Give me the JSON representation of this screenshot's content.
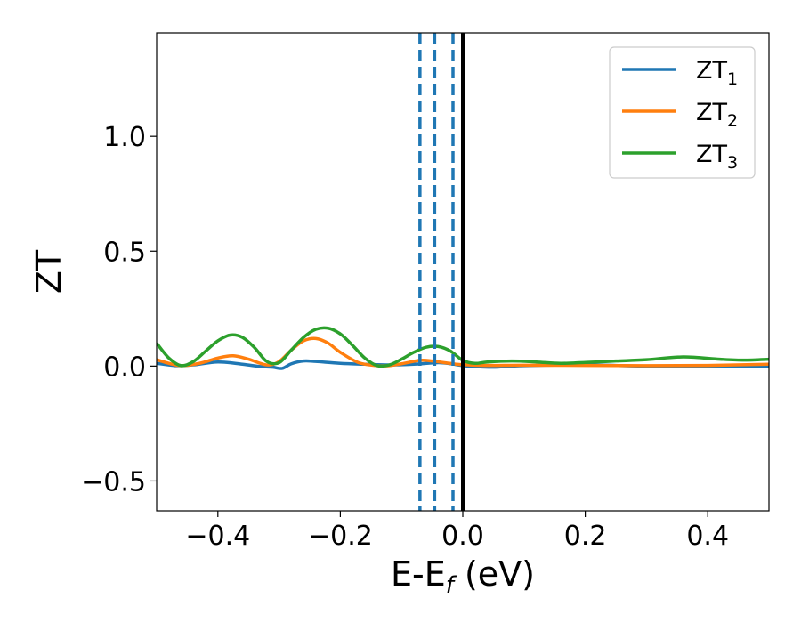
{
  "chart_data": {
    "type": "line",
    "xlabel": {
      "main": "E-E",
      "sub": "f",
      "unit": " (eV)"
    },
    "ylabel": "ZT",
    "xlim": [
      -0.5,
      0.5
    ],
    "ylim": [
      -0.63,
      1.45
    ],
    "x_ticks": [
      -0.4,
      -0.2,
      0.0,
      0.2,
      0.4
    ],
    "x_tick_labels": [
      "−0.4",
      "−0.2",
      "0.0",
      "0.2",
      "0.4"
    ],
    "y_ticks": [
      -0.5,
      0.0,
      0.5,
      1.0
    ],
    "y_tick_labels": [
      "−0.5",
      "0.0",
      "0.5",
      "1.0"
    ],
    "legend_position": "top-right",
    "grid": false,
    "series": [
      {
        "name": "ZT1",
        "label_main": "ZT",
        "label_sub": "1",
        "color": "#1f77b4",
        "x": [
          -0.5,
          -0.47,
          -0.44,
          -0.4,
          -0.36,
          -0.33,
          -0.31,
          -0.295,
          -0.28,
          -0.26,
          -0.24,
          -0.2,
          -0.16,
          -0.12,
          -0.08,
          -0.04,
          -0.02,
          0.0,
          0.02,
          0.05,
          0.1,
          0.2,
          0.3,
          0.4,
          0.5
        ],
        "values": [
          0.012,
          0.002,
          0.005,
          0.018,
          0.008,
          -0.002,
          -0.005,
          -0.01,
          0.01,
          0.022,
          0.02,
          0.012,
          0.008,
          0.005,
          0.008,
          0.015,
          0.01,
          0.002,
          -0.002,
          -0.005,
          0.002,
          0.005,
          0.0,
          0.0,
          0.0
        ]
      },
      {
        "name": "ZT2",
        "label_main": "ZT",
        "label_sub": "2",
        "color": "#ff7f0e",
        "x": [
          -0.5,
          -0.48,
          -0.46,
          -0.43,
          -0.4,
          -0.375,
          -0.35,
          -0.32,
          -0.3,
          -0.28,
          -0.26,
          -0.24,
          -0.22,
          -0.2,
          -0.17,
          -0.14,
          -0.12,
          -0.1,
          -0.07,
          -0.05,
          -0.03,
          -0.01,
          0.0,
          0.02,
          0.05,
          0.1,
          0.2,
          0.3,
          0.4,
          0.5
        ],
        "values": [
          0.028,
          0.012,
          0.002,
          0.012,
          0.035,
          0.045,
          0.03,
          0.005,
          0.02,
          0.07,
          0.11,
          0.12,
          0.1,
          0.06,
          0.015,
          0.002,
          0.002,
          0.01,
          0.025,
          0.022,
          0.015,
          0.008,
          0.006,
          0.004,
          0.003,
          0.004,
          0.003,
          0.002,
          0.003,
          0.008
        ]
      },
      {
        "name": "ZT3",
        "label_main": "ZT",
        "label_sub": "3",
        "color": "#2ca02c",
        "x": [
          -0.5,
          -0.48,
          -0.46,
          -0.44,
          -0.42,
          -0.4,
          -0.38,
          -0.36,
          -0.34,
          -0.32,
          -0.3,
          -0.28,
          -0.26,
          -0.24,
          -0.22,
          -0.2,
          -0.18,
          -0.16,
          -0.14,
          -0.12,
          -0.1,
          -0.08,
          -0.06,
          -0.04,
          -0.02,
          0.0,
          0.02,
          0.04,
          0.08,
          0.12,
          0.16,
          0.2,
          0.25,
          0.3,
          0.36,
          0.42,
          0.46,
          0.5
        ],
        "values": [
          0.1,
          0.035,
          0.002,
          0.02,
          0.065,
          0.11,
          0.135,
          0.125,
          0.08,
          0.02,
          0.015,
          0.07,
          0.125,
          0.16,
          0.165,
          0.14,
          0.09,
          0.035,
          0.002,
          0.005,
          0.03,
          0.06,
          0.082,
          0.085,
          0.065,
          0.025,
          0.012,
          0.018,
          0.022,
          0.018,
          0.012,
          0.016,
          0.022,
          0.028,
          0.04,
          0.03,
          0.026,
          0.03
        ]
      }
    ],
    "vertical_lines": [
      {
        "x": -0.07,
        "style": "dashed",
        "color": "#1f77b4"
      },
      {
        "x": -0.046,
        "style": "dashed",
        "color": "#1f77b4"
      },
      {
        "x": -0.016,
        "style": "dashed",
        "color": "#1f77b4"
      },
      {
        "x": 0.0,
        "style": "solid",
        "color": "#000000"
      }
    ]
  }
}
